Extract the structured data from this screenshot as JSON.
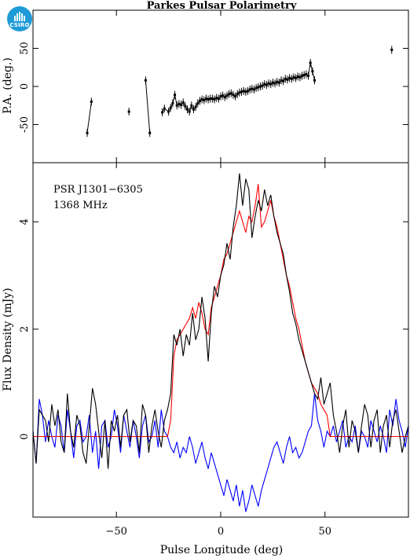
{
  "title": "Parkes Pulsar Polarimetry",
  "logo_text": "CSIRO",
  "pulsar_name": "PSR J1301−6305",
  "frequency": "1368 MHz",
  "colors": {
    "total_intensity": "#000000",
    "linear": "#ff0000",
    "circular": "#0000ff",
    "axes": "#000000"
  },
  "chart_data": [
    {
      "type": "scatter",
      "panel": "top",
      "ylabel": "P.A. (deg.)",
      "xlim": [
        -90,
        90
      ],
      "ylim": [
        -100,
        100
      ],
      "yticks": [
        -50,
        0,
        50
      ],
      "error_bars": true,
      "segments": [
        {
          "x": [
            -64,
            -62
          ],
          "y": [
            -61,
            -20
          ]
        },
        {
          "x": [
            -44
          ],
          "y": [
            -33
          ]
        },
        {
          "x": [
            -36,
            -34
          ],
          "y": [
            8,
            -61
          ]
        },
        {
          "x": [
            -28,
            -27,
            -25,
            -24,
            -23,
            -22,
            -21,
            -20,
            -19,
            -18,
            -17,
            -16,
            -15,
            -14,
            -13,
            -12,
            -11,
            -10,
            -9,
            -8,
            -7,
            -6,
            -5,
            -4,
            -3,
            -2,
            -1,
            0,
            1,
            2,
            3,
            4,
            5,
            6,
            7,
            8,
            9,
            10,
            11,
            12,
            13,
            14,
            15,
            16,
            17,
            18,
            19,
            20,
            21,
            22,
            23,
            24,
            25,
            26,
            27,
            28,
            29,
            30,
            31,
            32,
            33,
            34,
            35,
            36,
            37,
            38,
            39,
            40,
            41,
            42,
            43,
            44,
            45
          ],
          "y": [
            -34,
            -29,
            -33,
            -28,
            -22,
            -11,
            -25,
            -23,
            -24,
            -21,
            -26,
            -30,
            -33,
            -25,
            -30,
            -27,
            -22,
            -19,
            -17,
            -18,
            -16,
            -17,
            -16,
            -16,
            -17,
            -15,
            -16,
            -13,
            -12,
            -14,
            -12,
            -10,
            -9,
            -11,
            -13,
            -10,
            -8,
            -7,
            -6,
            -7,
            -6,
            -4,
            -3,
            -4,
            -2,
            -1,
            0,
            1,
            3,
            2,
            4,
            3,
            5,
            4,
            6,
            5,
            8,
            7,
            10,
            9,
            11,
            10,
            12,
            11,
            13,
            12,
            14,
            15,
            16,
            14,
            31,
            20,
            8
          ]
        },
        {
          "x": [
            82
          ],
          "y": [
            48
          ]
        }
      ]
    },
    {
      "type": "line",
      "panel": "bottom",
      "xlabel": "Pulse Longitude (deg)",
      "ylabel": "Flux Density (mJy)",
      "xlim": [
        -90,
        90
      ],
      "ylim": [
        -1.5,
        5.1
      ],
      "xticks": [
        -50,
        0,
        50
      ],
      "yticks": [
        0,
        2,
        4
      ],
      "x_start": -90,
      "x_step": 1.5,
      "series": [
        {
          "values": [
            0.1,
            -0.5,
            0.5,
            0.4,
            0.3,
            -0.1,
            0.6,
            0.2,
            0.5,
            -0.1,
            -0.3,
            0.8,
            0.1,
            -0.2,
            0.4,
            0.2,
            -0.3,
            -0.5,
            0.2,
            0.9,
            0.6,
            0.1,
            -0.4,
            0.3,
            -0.6,
            0.3,
            0.1,
            0.4,
            -0.2,
            0.4,
            0.5,
            -0.1,
            0.3,
            0.2,
            -0.3,
            0.6,
            0.4,
            -0.3,
            0.2,
            0.5,
            0.1,
            -0.2,
            0.3,
            0.5,
            0.8,
            1.9,
            1.7,
            2.0,
            1.5,
            1.9,
            1.7,
            2.3,
            1.8,
            2.0,
            2.6,
            2.2,
            1.4,
            2.3,
            2.8,
            2.6,
            3.0,
            3.2,
            3.6,
            3.3,
            3.9,
            4.3,
            4.9,
            4.3,
            4.8,
            4.6,
            3.7,
            4.1,
            4.4,
            4.2,
            4.6,
            4.3,
            4.5,
            4.1,
            3.8,
            3.6,
            3.4,
            3.0,
            2.7,
            2.3,
            2.1,
            1.8,
            1.6,
            1.4,
            1.2,
            1.0,
            0.8,
            0.7,
            1.1,
            0.6,
            0.8,
            1.0,
            0.4,
            0.1,
            -0.3,
            0.2,
            0.5,
            -0.2,
            0.3,
            0.1,
            -0.3,
            0.2,
            0.6,
            0.4,
            -0.2,
            0.3,
            0.5,
            -0.3,
            0.2,
            0.4,
            -0.2,
            0.3,
            0.5,
            0.1,
            -0.3,
            0.0,
            0.2
          ]
        },
        {
          "values": [
            0.0,
            0.0,
            0.0,
            0.0,
            0.0,
            0.0,
            0.0,
            0.0,
            0.0,
            0.0,
            0.0,
            0.0,
            0.0,
            0.0,
            0.0,
            0.0,
            0.0,
            0.0,
            0.0,
            0.0,
            0.0,
            0.0,
            0.0,
            0.0,
            0.0,
            0.0,
            0.0,
            0.0,
            0.0,
            0.0,
            0.0,
            0.0,
            0.0,
            0.0,
            0.0,
            0.0,
            0.0,
            0.0,
            0.0,
            0.0,
            0.0,
            0.0,
            0.0,
            0.0,
            0.3,
            1.5,
            1.8,
            1.9,
            2.0,
            2.1,
            2.2,
            2.4,
            2.2,
            2.5,
            2.3,
            2.0,
            1.9,
            2.4,
            2.6,
            2.8,
            3.0,
            3.3,
            3.4,
            3.6,
            3.8,
            4.0,
            4.2,
            4.0,
            3.8,
            4.1,
            4.0,
            4.3,
            4.7,
            3.9,
            4.0,
            4.2,
            4.4,
            4.1,
            3.9,
            3.6,
            3.3,
            3.0,
            2.8,
            2.5,
            2.2,
            2.0,
            1.7,
            1.4,
            1.2,
            1.0,
            0.9,
            0.8,
            0.6,
            0.5,
            0.4,
            0.0,
            0.0,
            0.0,
            0.0,
            0.0,
            0.0,
            0.0,
            0.0,
            0.0,
            0.0,
            0.0,
            0.0,
            0.0,
            0.0,
            0.0,
            0.0,
            0.0,
            0.0,
            0.0,
            0.0,
            0.0,
            0.0,
            0.0,
            0.0,
            0.0,
            0.0
          ]
        },
        {
          "values": [
            0.1,
            -0.5,
            0.7,
            0.4,
            -0.1,
            0.3,
            0.0,
            -0.2,
            0.4,
            0.2,
            -0.3,
            0.5,
            0.1,
            -0.4,
            0.2,
            0.3,
            -0.1,
            0.0,
            0.4,
            -0.3,
            0.1,
            -0.6,
            0.2,
            0.3,
            -0.2,
            0.0,
            0.5,
            0.2,
            -0.3,
            0.4,
            0.1,
            -0.2,
            0.3,
            0.0,
            -0.4,
            0.2,
            0.4,
            -0.1,
            0.0,
            0.3,
            -0.2,
            0.5,
            0.1,
            0.0,
            -0.2,
            -0.3,
            -0.1,
            -0.4,
            -0.2,
            -0.3,
            0.0,
            -0.2,
            -0.5,
            -0.3,
            -0.1,
            -0.4,
            -0.6,
            -0.3,
            -0.5,
            -0.7,
            -0.9,
            -1.1,
            -0.8,
            -1.0,
            -1.2,
            -0.9,
            -1.3,
            -1.0,
            -1.4,
            -1.2,
            -0.9,
            -1.1,
            -1.3,
            -1.0,
            -0.8,
            -0.6,
            -0.4,
            -0.2,
            -0.1,
            -0.3,
            -0.5,
            -0.2,
            0.0,
            -0.3,
            -0.2,
            -0.4,
            -0.3,
            -0.1,
            0.1,
            0.2,
            0.8,
            0.3,
            0.1,
            -0.2,
            0.1,
            0.0,
            0.2,
            -0.1,
            0.1,
            0.3,
            -0.2,
            0.0,
            -0.1,
            0.2,
            -0.3,
            0.1,
            0.0,
            -0.2,
            0.3,
            0.1,
            -0.1,
            0.2,
            0.0,
            -0.3,
            0.5,
            0.2,
            0.7,
            0.3,
            0.1,
            -0.2,
            0.2
          ]
        }
      ]
    }
  ]
}
